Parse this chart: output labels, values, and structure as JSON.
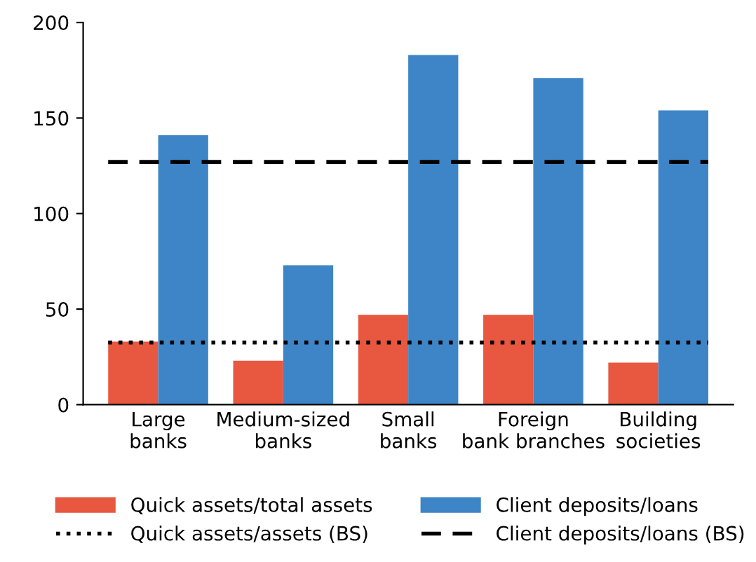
{
  "chart_data": {
    "type": "bar",
    "categories": [
      "Large\nbanks",
      "Medium-sized\nbanks",
      "Small\nbanks",
      "Foreign\nbank branches",
      "Building\nsocieties"
    ],
    "series": [
      {
        "name": "Quick assets/total assets",
        "color": "#e8573f",
        "values": [
          33,
          23,
          47,
          47,
          22
        ]
      },
      {
        "name": "Client deposits/loans",
        "color": "#3d85c6",
        "values": [
          141,
          73,
          183,
          171,
          154
        ]
      }
    ],
    "ref_lines": [
      {
        "axis": "y",
        "value": 32.5,
        "label": "Quick assets/assets (BS)",
        "color": "#000000",
        "line_style": "dotted"
      },
      {
        "axis": "y",
        "value": 127,
        "label": "Client deposits/loans (BS)",
        "color": "#000000",
        "line_style": "dashed"
      }
    ],
    "ylim": [
      0,
      200
    ],
    "yticks": [
      0,
      50,
      100,
      150,
      200
    ],
    "grid": false,
    "legend": "bottom"
  }
}
